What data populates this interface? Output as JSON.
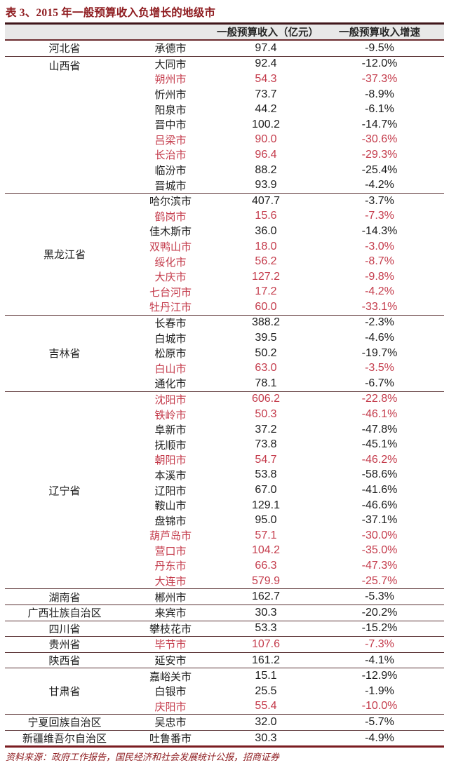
{
  "title": "表 3、2015 年一般预算收入负增长的地级市",
  "source": "资料来源：政府工作报告，国民经济和社会发展统计公报，招商证券",
  "columns": {
    "province": "",
    "city": "",
    "revenue": "一般预算收入（亿元）",
    "growth": "一般预算收入增速"
  },
  "colors": {
    "title_red": "#8E1B1F",
    "highlight_red": "#C43B4B",
    "text_black": "#1C1C1C",
    "header_bg": "#E8E8E8",
    "rule_dark": "#40161A",
    "rule_bottom": "#7A1C20"
  },
  "groups": [
    {
      "province": "河北省",
      "label_align": "middle",
      "cities": [
        {
          "name": "承德市",
          "revenue": "97.4",
          "growth": "-9.5%",
          "highlight": false
        }
      ]
    },
    {
      "province": "山西省",
      "label_align": "top",
      "cities": [
        {
          "name": "大同市",
          "revenue": "92.4",
          "growth": "-12.0%",
          "highlight": false
        },
        {
          "name": "朔州市",
          "revenue": "54.3",
          "growth": "-37.3%",
          "highlight": true
        },
        {
          "name": "忻州市",
          "revenue": "73.7",
          "growth": "-8.9%",
          "highlight": false
        },
        {
          "name": "阳泉市",
          "revenue": "44.2",
          "growth": "-6.1%",
          "highlight": false
        },
        {
          "name": "晋中市",
          "revenue": "100.2",
          "growth": "-14.7%",
          "highlight": false
        },
        {
          "name": "吕梁市",
          "revenue": "90.0",
          "growth": "-30.6%",
          "highlight": true
        },
        {
          "name": "长治市",
          "revenue": "96.4",
          "growth": "-29.3%",
          "highlight": true
        },
        {
          "name": "临汾市",
          "revenue": "88.2",
          "growth": "-25.4%",
          "highlight": false
        },
        {
          "name": "晋城市",
          "revenue": "93.9",
          "growth": "-4.2%",
          "highlight": false
        }
      ]
    },
    {
      "province": "黑龙江省",
      "label_align": "middle",
      "cities": [
        {
          "name": "哈尔滨市",
          "revenue": "407.7",
          "growth": "-3.7%",
          "highlight": false
        },
        {
          "name": "鹤岗市",
          "revenue": "15.6",
          "growth": "-7.3%",
          "highlight": true
        },
        {
          "name": "佳木斯市",
          "revenue": "36.0",
          "growth": "-14.3%",
          "highlight": false
        },
        {
          "name": "双鸭山市",
          "revenue": "18.0",
          "growth": "-3.0%",
          "highlight": true
        },
        {
          "name": "绥化市",
          "revenue": "56.2",
          "growth": "-8.7%",
          "highlight": true
        },
        {
          "name": "大庆市",
          "revenue": "127.2",
          "growth": "-9.8%",
          "highlight": true
        },
        {
          "name": "七台河市",
          "revenue": "17.2",
          "growth": "-4.2%",
          "highlight": true
        },
        {
          "name": "牡丹江市",
          "revenue": "60.0",
          "growth": "-33.1%",
          "highlight": true
        }
      ]
    },
    {
      "province": "吉林省",
      "label_align": "middle",
      "cities": [
        {
          "name": "长春市",
          "revenue": "388.2",
          "growth": "-2.3%",
          "highlight": false
        },
        {
          "name": "白城市",
          "revenue": "39.5",
          "growth": "-4.6%",
          "highlight": false
        },
        {
          "name": "松原市",
          "revenue": "50.2",
          "growth": "-19.7%",
          "highlight": false
        },
        {
          "name": "白山市",
          "revenue": "63.0",
          "growth": "-3.5%",
          "highlight": true
        },
        {
          "name": "通化市",
          "revenue": "78.1",
          "growth": "-6.7%",
          "highlight": false
        }
      ]
    },
    {
      "province": "辽宁省",
      "label_align": "middle",
      "cities": [
        {
          "name": "沈阳市",
          "revenue": "606.2",
          "growth": "-22.8%",
          "highlight": true
        },
        {
          "name": "铁岭市",
          "revenue": "50.3",
          "growth": "-46.1%",
          "highlight": true
        },
        {
          "name": "阜新市",
          "revenue": "37.2",
          "growth": "-47.8%",
          "highlight": false
        },
        {
          "name": "抚顺市",
          "revenue": "73.8",
          "growth": "-45.1%",
          "highlight": false
        },
        {
          "name": "朝阳市",
          "revenue": "54.7",
          "growth": "-46.2%",
          "highlight": true
        },
        {
          "name": "本溪市",
          "revenue": "53.8",
          "growth": "-58.6%",
          "highlight": false
        },
        {
          "name": "辽阳市",
          "revenue": "67.0",
          "growth": "-41.6%",
          "highlight": false
        },
        {
          "name": "鞍山市",
          "revenue": "129.1",
          "growth": "-46.6%",
          "highlight": false
        },
        {
          "name": "盘锦市",
          "revenue": "95.0",
          "growth": "-37.1%",
          "highlight": false
        },
        {
          "name": "葫芦岛市",
          "revenue": "57.1",
          "growth": "-30.0%",
          "highlight": true
        },
        {
          "name": "营口市",
          "revenue": "104.2",
          "growth": "-35.0%",
          "highlight": true
        },
        {
          "name": "丹东市",
          "revenue": "66.3",
          "growth": "-47.3%",
          "highlight": true
        },
        {
          "name": "大连市",
          "revenue": "579.9",
          "growth": "-25.7%",
          "highlight": true
        }
      ]
    },
    {
      "province": "湖南省",
      "label_align": "middle",
      "cities": [
        {
          "name": "郴州市",
          "revenue": "162.7",
          "growth": "-5.3%",
          "highlight": false
        }
      ]
    },
    {
      "province": "广西壮族自治区",
      "label_align": "middle",
      "cities": [
        {
          "name": "来宾市",
          "revenue": "30.3",
          "growth": "-20.2%",
          "highlight": false
        }
      ]
    },
    {
      "province": "四川省",
      "label_align": "middle",
      "cities": [
        {
          "name": "攀枝花市",
          "revenue": "53.3",
          "growth": "-15.2%",
          "highlight": false
        }
      ]
    },
    {
      "province": "贵州省",
      "label_align": "middle",
      "cities": [
        {
          "name": "毕节市",
          "revenue": "107.6",
          "growth": "-7.3%",
          "highlight": true
        }
      ]
    },
    {
      "province": "陕西省",
      "label_align": "middle",
      "cities": [
        {
          "name": "延安市",
          "revenue": "161.2",
          "growth": "-4.1%",
          "highlight": false
        }
      ]
    },
    {
      "province": "甘肃省",
      "label_align": "middle",
      "cities": [
        {
          "name": "嘉峪关市",
          "revenue": "15.1",
          "growth": "-12.9%",
          "highlight": false
        },
        {
          "name": "白银市",
          "revenue": "25.5",
          "growth": "-1.9%",
          "highlight": false
        },
        {
          "name": "庆阳市",
          "revenue": "55.4",
          "growth": "-10.0%",
          "highlight": true
        }
      ]
    },
    {
      "province": "宁夏回族自治区",
      "label_align": "middle",
      "cities": [
        {
          "name": "吴忠市",
          "revenue": "32.0",
          "growth": "-5.7%",
          "highlight": false
        }
      ]
    },
    {
      "province": "新疆维吾尔自治区",
      "label_align": "middle",
      "cities": [
        {
          "name": "吐鲁番市",
          "revenue": "30.3",
          "growth": "-4.9%",
          "highlight": false
        }
      ]
    }
  ]
}
